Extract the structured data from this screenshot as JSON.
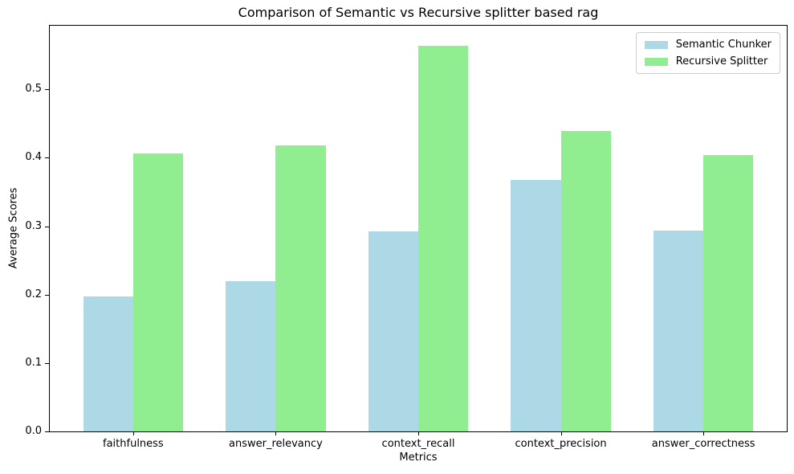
{
  "chart_data": {
    "type": "bar",
    "title": "Comparison of Semantic vs Recursive splitter based rag",
    "xlabel": "Metrics",
    "ylabel": "Average Scores",
    "categories": [
      "faithfulness",
      "answer_relevancy",
      "context_recall",
      "context_precision",
      "answer_correctness"
    ],
    "series": [
      {
        "name": "Semantic Chunker",
        "color": "#ADD8E6",
        "values": [
          0.197,
          0.22,
          0.292,
          0.368,
          0.294
        ]
      },
      {
        "name": "Recursive Splitter",
        "color": "#90EE90",
        "values": [
          0.406,
          0.418,
          0.564,
          0.439,
          0.404
        ]
      }
    ],
    "yticks": [
      0.0,
      0.1,
      0.2,
      0.3,
      0.4,
      0.5
    ],
    "ylim": [
      0,
      0.593
    ],
    "xlim": [
      -0.585,
      4.585
    ],
    "bar_width": 0.35,
    "legend_position": "upper right",
    "grid": false,
    "background_color": "#ffffff",
    "spine_color": "#000000"
  }
}
